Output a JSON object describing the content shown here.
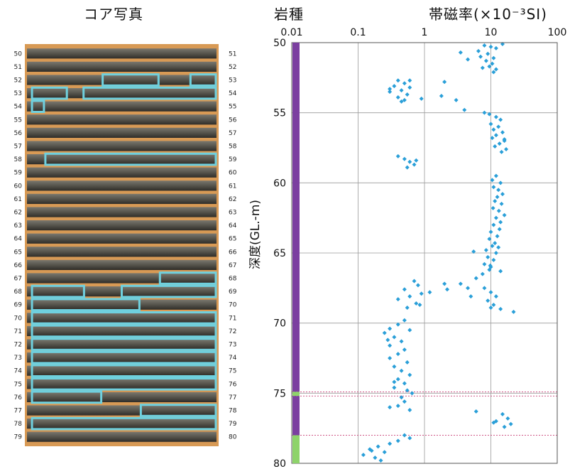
{
  "titles": {
    "core": "コア写真",
    "rock": "岩種",
    "chi": "帯磁率(×10⁻³SI)"
  },
  "y_axis_label": "深度(GL.-m)",
  "colors": {
    "point": "#2a9fd8",
    "rock_upper": "#7b3fa0",
    "rock_lower": "#8ed36a",
    "highlight": "#6fd0de",
    "core_frame": "#d89a55",
    "boundary": "#c02060"
  },
  "core": {
    "left_depths": [
      "50",
      "51",
      "52",
      "53",
      "54",
      "55",
      "56",
      "57",
      "58",
      "59",
      "60",
      "61",
      "62",
      "63",
      "64",
      "65",
      "66",
      "67",
      "68",
      "69",
      "70",
      "71",
      "72",
      "73",
      "74",
      "75",
      "76",
      "77",
      "78",
      "79"
    ],
    "right_depths": [
      "51",
      "52",
      "53",
      "54",
      "55",
      "56",
      "57",
      "58",
      "59",
      "60",
      "61",
      "62",
      "63",
      "64",
      "65",
      "66",
      "67",
      "68",
      "69",
      "70",
      "71",
      "72",
      "73",
      "74",
      "75",
      "76",
      "77",
      "78",
      "79",
      "80"
    ]
  },
  "rock_column": [
    {
      "from": 50,
      "to": 74.9,
      "color": "#7b3fa0"
    },
    {
      "from": 74.9,
      "to": 75.2,
      "color": "#8ed36a"
    },
    {
      "from": 75.2,
      "to": 78.0,
      "color": "#7b3fa0"
    },
    {
      "from": 78.0,
      "to": 80,
      "color": "#8ed36a"
    }
  ],
  "chart_data": {
    "type": "scatter",
    "x_scale": "log",
    "xlim": [
      0.01,
      100
    ],
    "ylim": [
      50,
      80
    ],
    "y_inverted": true,
    "x_ticks": [
      "0.01",
      "0.1",
      "1",
      "10",
      "100"
    ],
    "y_ticks": [
      "50",
      "55",
      "60",
      "65",
      "70",
      "75",
      "80"
    ],
    "grid": true,
    "boundaries": [
      74.9,
      75.2,
      78.0
    ],
    "points": [
      [
        8.0,
        50.2
      ],
      [
        10.0,
        50.3
      ],
      [
        12.0,
        50.4
      ],
      [
        15.0,
        50.1
      ],
      [
        6.5,
        50.6
      ],
      [
        9.0,
        50.8
      ],
      [
        7.0,
        51.0
      ],
      [
        11.0,
        51.1
      ],
      [
        8.5,
        51.3
      ],
      [
        10.5,
        51.5
      ],
      [
        9.5,
        51.7
      ],
      [
        7.5,
        51.8
      ],
      [
        12.0,
        51.9
      ],
      [
        11.0,
        52.1
      ],
      [
        3.5,
        50.7
      ],
      [
        4.5,
        51.2
      ],
      [
        0.4,
        52.7
      ],
      [
        0.5,
        52.9
      ],
      [
        0.35,
        53.1
      ],
      [
        0.6,
        53.2
      ],
      [
        0.45,
        53.4
      ],
      [
        0.3,
        53.5
      ],
      [
        0.55,
        53.7
      ],
      [
        0.4,
        53.9
      ],
      [
        0.5,
        54.1
      ],
      [
        0.3,
        53.3
      ],
      [
        0.6,
        52.7
      ],
      [
        0.45,
        54.2
      ],
      [
        2.0,
        52.8
      ],
      [
        1.8,
        53.8
      ],
      [
        3.0,
        54.1
      ],
      [
        0.9,
        54.0
      ],
      [
        4.0,
        54.8
      ],
      [
        8.0,
        55.0
      ],
      [
        12.0,
        55.3
      ],
      [
        14.0,
        55.5
      ],
      [
        10.0,
        55.8
      ],
      [
        13.0,
        56.0
      ],
      [
        11.0,
        56.2
      ],
      [
        15.0,
        56.4
      ],
      [
        12.0,
        56.6
      ],
      [
        10.5,
        56.8
      ],
      [
        16.0,
        57.0
      ],
      [
        13.5,
        57.2
      ],
      [
        11.5,
        57.4
      ],
      [
        17.0,
        57.6
      ],
      [
        14.5,
        57.8
      ],
      [
        9.5,
        55.1
      ],
      [
        16.0,
        56.9
      ],
      [
        0.5,
        58.3
      ],
      [
        0.6,
        58.5
      ],
      [
        0.7,
        58.7
      ],
      [
        0.55,
        58.9
      ],
      [
        0.4,
        58.1
      ],
      [
        0.75,
        58.4
      ],
      [
        12.0,
        59.5
      ],
      [
        10.5,
        59.8
      ],
      [
        14.0,
        60.0
      ],
      [
        11.0,
        60.3
      ],
      [
        13.0,
        60.5
      ],
      [
        15.0,
        60.8
      ],
      [
        12.5,
        61.0
      ],
      [
        11.5,
        61.3
      ],
      [
        14.5,
        61.5
      ],
      [
        10.8,
        61.8
      ],
      [
        13.2,
        62.0
      ],
      [
        16.0,
        62.3
      ],
      [
        12.0,
        62.5
      ],
      [
        14.0,
        62.8
      ],
      [
        11.0,
        63.0
      ],
      [
        13.5,
        63.3
      ],
      [
        10.0,
        63.5
      ],
      [
        12.5,
        63.8
      ],
      [
        9.5,
        64.0
      ],
      [
        11.5,
        64.3
      ],
      [
        10.5,
        64.5
      ],
      [
        8.5,
        64.8
      ],
      [
        12.0,
        65.0
      ],
      [
        9.0,
        65.3
      ],
      [
        11.0,
        65.5
      ],
      [
        8.0,
        65.8
      ],
      [
        10.0,
        66.0
      ],
      [
        9.5,
        66.2
      ],
      [
        7.5,
        66.5
      ],
      [
        6.0,
        66.8
      ],
      [
        14.0,
        66.3
      ],
      [
        5.5,
        64.9
      ],
      [
        13.0,
        64.6
      ],
      [
        9.8,
        65.9
      ],
      [
        8.0,
        67.5
      ],
      [
        10.0,
        67.8
      ],
      [
        12.0,
        68.1
      ],
      [
        9.0,
        68.4
      ],
      [
        11.0,
        68.7
      ],
      [
        14.0,
        69.0
      ],
      [
        22.0,
        69.2
      ],
      [
        10.0,
        68.9
      ],
      [
        4.5,
        67.5
      ],
      [
        3.5,
        67.2
      ],
      [
        5.0,
        68.1
      ],
      [
        0.7,
        67.0
      ],
      [
        0.8,
        67.3
      ],
      [
        0.5,
        67.6
      ],
      [
        0.9,
        67.9
      ],
      [
        0.6,
        68.1
      ],
      [
        0.4,
        68.3
      ],
      [
        0.75,
        68.6
      ],
      [
        0.55,
        68.9
      ],
      [
        0.85,
        68.7
      ],
      [
        1.2,
        67.8
      ],
      [
        2.0,
        67.2
      ],
      [
        2.2,
        67.6
      ],
      [
        0.5,
        69.8
      ],
      [
        0.4,
        70.1
      ],
      [
        0.3,
        70.4
      ],
      [
        0.25,
        70.7
      ],
      [
        0.35,
        71.0
      ],
      [
        0.45,
        71.3
      ],
      [
        0.3,
        71.6
      ],
      [
        0.5,
        71.9
      ],
      [
        0.4,
        72.2
      ],
      [
        0.3,
        72.5
      ],
      [
        0.55,
        72.8
      ],
      [
        0.35,
        73.1
      ],
      [
        0.45,
        73.4
      ],
      [
        0.6,
        73.7
      ],
      [
        0.4,
        74.0
      ],
      [
        0.5,
        74.3
      ],
      [
        0.35,
        74.6
      ],
      [
        0.55,
        74.8
      ],
      [
        0.65,
        75.0
      ],
      [
        0.45,
        75.3
      ],
      [
        0.5,
        75.6
      ],
      [
        0.4,
        75.9
      ],
      [
        0.6,
        76.2
      ],
      [
        0.3,
        76.0
      ],
      [
        0.35,
        74.2
      ],
      [
        0.28,
        71.2
      ],
      [
        0.6,
        70.5
      ],
      [
        15.0,
        76.5
      ],
      [
        18.0,
        76.8
      ],
      [
        12.0,
        77.0
      ],
      [
        20.0,
        77.2
      ],
      [
        16.0,
        77.4
      ],
      [
        11.0,
        77.1
      ],
      [
        6.0,
        76.3
      ],
      [
        0.5,
        78.0
      ],
      [
        0.6,
        78.2
      ],
      [
        0.4,
        78.4
      ],
      [
        0.3,
        78.6
      ],
      [
        0.2,
        78.8
      ],
      [
        0.15,
        79.0
      ],
      [
        0.25,
        79.2
      ],
      [
        0.12,
        79.4
      ],
      [
        0.18,
        79.6
      ],
      [
        0.22,
        79.8
      ],
      [
        0.16,
        79.1
      ]
    ]
  }
}
